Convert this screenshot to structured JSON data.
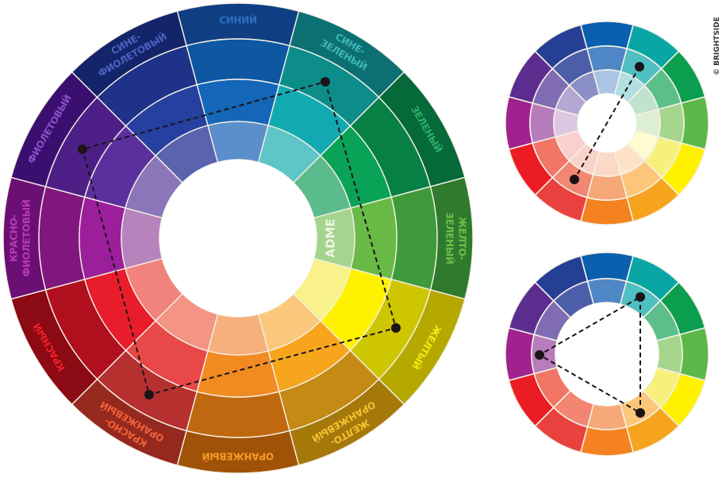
{
  "copyright": "© BRIGHTSIDE",
  "main_wheel": {
    "center_text": "ADME",
    "sectors": [
      {
        "label": [
          "СИНИЙ"
        ],
        "text_color": "#2f6fc0",
        "colors": [
          "#0f3f82",
          "#0d57a3",
          "#1466b8",
          "#5b8fcc"
        ]
      },
      {
        "label": [
          "СИНЕ-",
          "ЗЕЛЕНЫЙ"
        ],
        "text_color": "#3fb6b6",
        "colors": [
          "#0c6f74",
          "#0d8d8a",
          "#12aab0",
          "#5ec6c6"
        ]
      },
      {
        "label": [
          "ЗЕЛЕНЫЙ"
        ],
        "text_color": "#2fb068",
        "colors": [
          "#05693a",
          "#078043",
          "#0aa256",
          "#5cbb8c"
        ]
      },
      {
        "label": [
          "ЖЕЛТО-",
          "ЗЕЛЕНЫЙ"
        ],
        "text_color": "#6cc04a",
        "colors": [
          "#2f7a2c",
          "#3e9a3a",
          "#69b946",
          "#a5d48e"
        ]
      },
      {
        "label": [
          "ЖЕЛТЫЙ"
        ],
        "text_color": "#f2ea10",
        "colors": [
          "#b5a800",
          "#cec600",
          "#fff200",
          "#f9f28a"
        ]
      },
      {
        "label": [
          "ЖЕЛТО-",
          "ОРАНЖЕВЫЙ"
        ],
        "text_color": "#f5c030",
        "colors": [
          "#a5780a",
          "#c58a14",
          "#f7a51d",
          "#fac77c"
        ]
      },
      {
        "label": [
          "ОРАНЖЕВЫЙ"
        ],
        "text_color": "#f59a2a",
        "colors": [
          "#a05207",
          "#c0680f",
          "#f28a22",
          "#f5b07c"
        ]
      },
      {
        "label": [
          "КРАСНО-",
          "ОРАНЖЕВЫЙ"
        ],
        "text_color": "#f0603a",
        "colors": [
          "#95291e",
          "#b73030",
          "#e94848",
          "#f39484"
        ]
      },
      {
        "label": [
          "КРАСНЫЙ"
        ],
        "text_color": "#f0202c",
        "colors": [
          "#8c0a14",
          "#b0101e",
          "#e81c2a",
          "#f2837c"
        ]
      },
      {
        "label": [
          "КРАСНО-",
          "ФИОЛЕТОВЫЙ"
        ],
        "text_color": "#b83ab8",
        "colors": [
          "#6c0f74",
          "#80167e",
          "#9b1f9a",
          "#b683bd"
        ]
      },
      {
        "label": [
          "ФИОЛЕТОВЫЙ"
        ],
        "text_color": "#8a52c8",
        "colors": [
          "#3b0f70",
          "#4d1f86",
          "#5c2f9e",
          "#8a76b8"
        ]
      },
      {
        "label": [
          "СИНЕ-",
          "ФИОЛЕТОВЫЙ"
        ],
        "text_color": "#4a62c0",
        "colors": [
          "#14246b",
          "#1d3288",
          "#2640a0",
          "#5a63ae"
        ]
      }
    ],
    "scheme": "tetradic"
  },
  "small_wheels": [
    {
      "scheme": "complementary",
      "sectors": [
        [
          "#0a5fae",
          "#4f86c6",
          "#a9c4e4"
        ],
        [
          "#0aa6a6",
          "#4fbfc4",
          "#b2e0e2"
        ],
        [
          "#0a9e4e",
          "#5cbf8a",
          "#bfe3cf"
        ],
        [
          "#5cb848",
          "#a6d58c",
          "#dcefd3"
        ],
        [
          "#fff100",
          "#f7f17c",
          "#fdfbd0"
        ],
        [
          "#f6a41e",
          "#fcc67a",
          "#fde2c6"
        ],
        [
          "#f58220",
          "#f7a878",
          "#fbd9c6"
        ],
        [
          "#e9413e",
          "#f28672",
          "#fad3c8"
        ],
        [
          "#ec1c24",
          "#f27565",
          "#f8d0cc"
        ],
        [
          "#a0228f",
          "#b77cbc",
          "#dcc8e2"
        ],
        [
          "#5b2d8e",
          "#7f6cb2",
          "#b3a8d4"
        ],
        [
          "#253f95",
          "#4c5ea8",
          "#8a8fc6"
        ]
      ]
    },
    {
      "scheme": "triadic",
      "sectors": [
        [
          "#0a5fae",
          "#4f86c6"
        ],
        [
          "#0aa6a6",
          "#4fbfc4"
        ],
        [
          "#0a9e4e",
          "#5cbf8a"
        ],
        [
          "#5cb848",
          "#a6d58c"
        ],
        [
          "#fff100",
          "#f7f17c"
        ],
        [
          "#f6a41e",
          "#fcc67a"
        ],
        [
          "#f58220",
          "#f7a878"
        ],
        [
          "#e9413e",
          "#f28672"
        ],
        [
          "#ec1c24",
          "#f27565"
        ],
        [
          "#a0228f",
          "#b77cbc"
        ],
        [
          "#5b2d8e",
          "#7f6cb2"
        ],
        [
          "#253f95",
          "#4c5ea8"
        ]
      ]
    }
  ]
}
